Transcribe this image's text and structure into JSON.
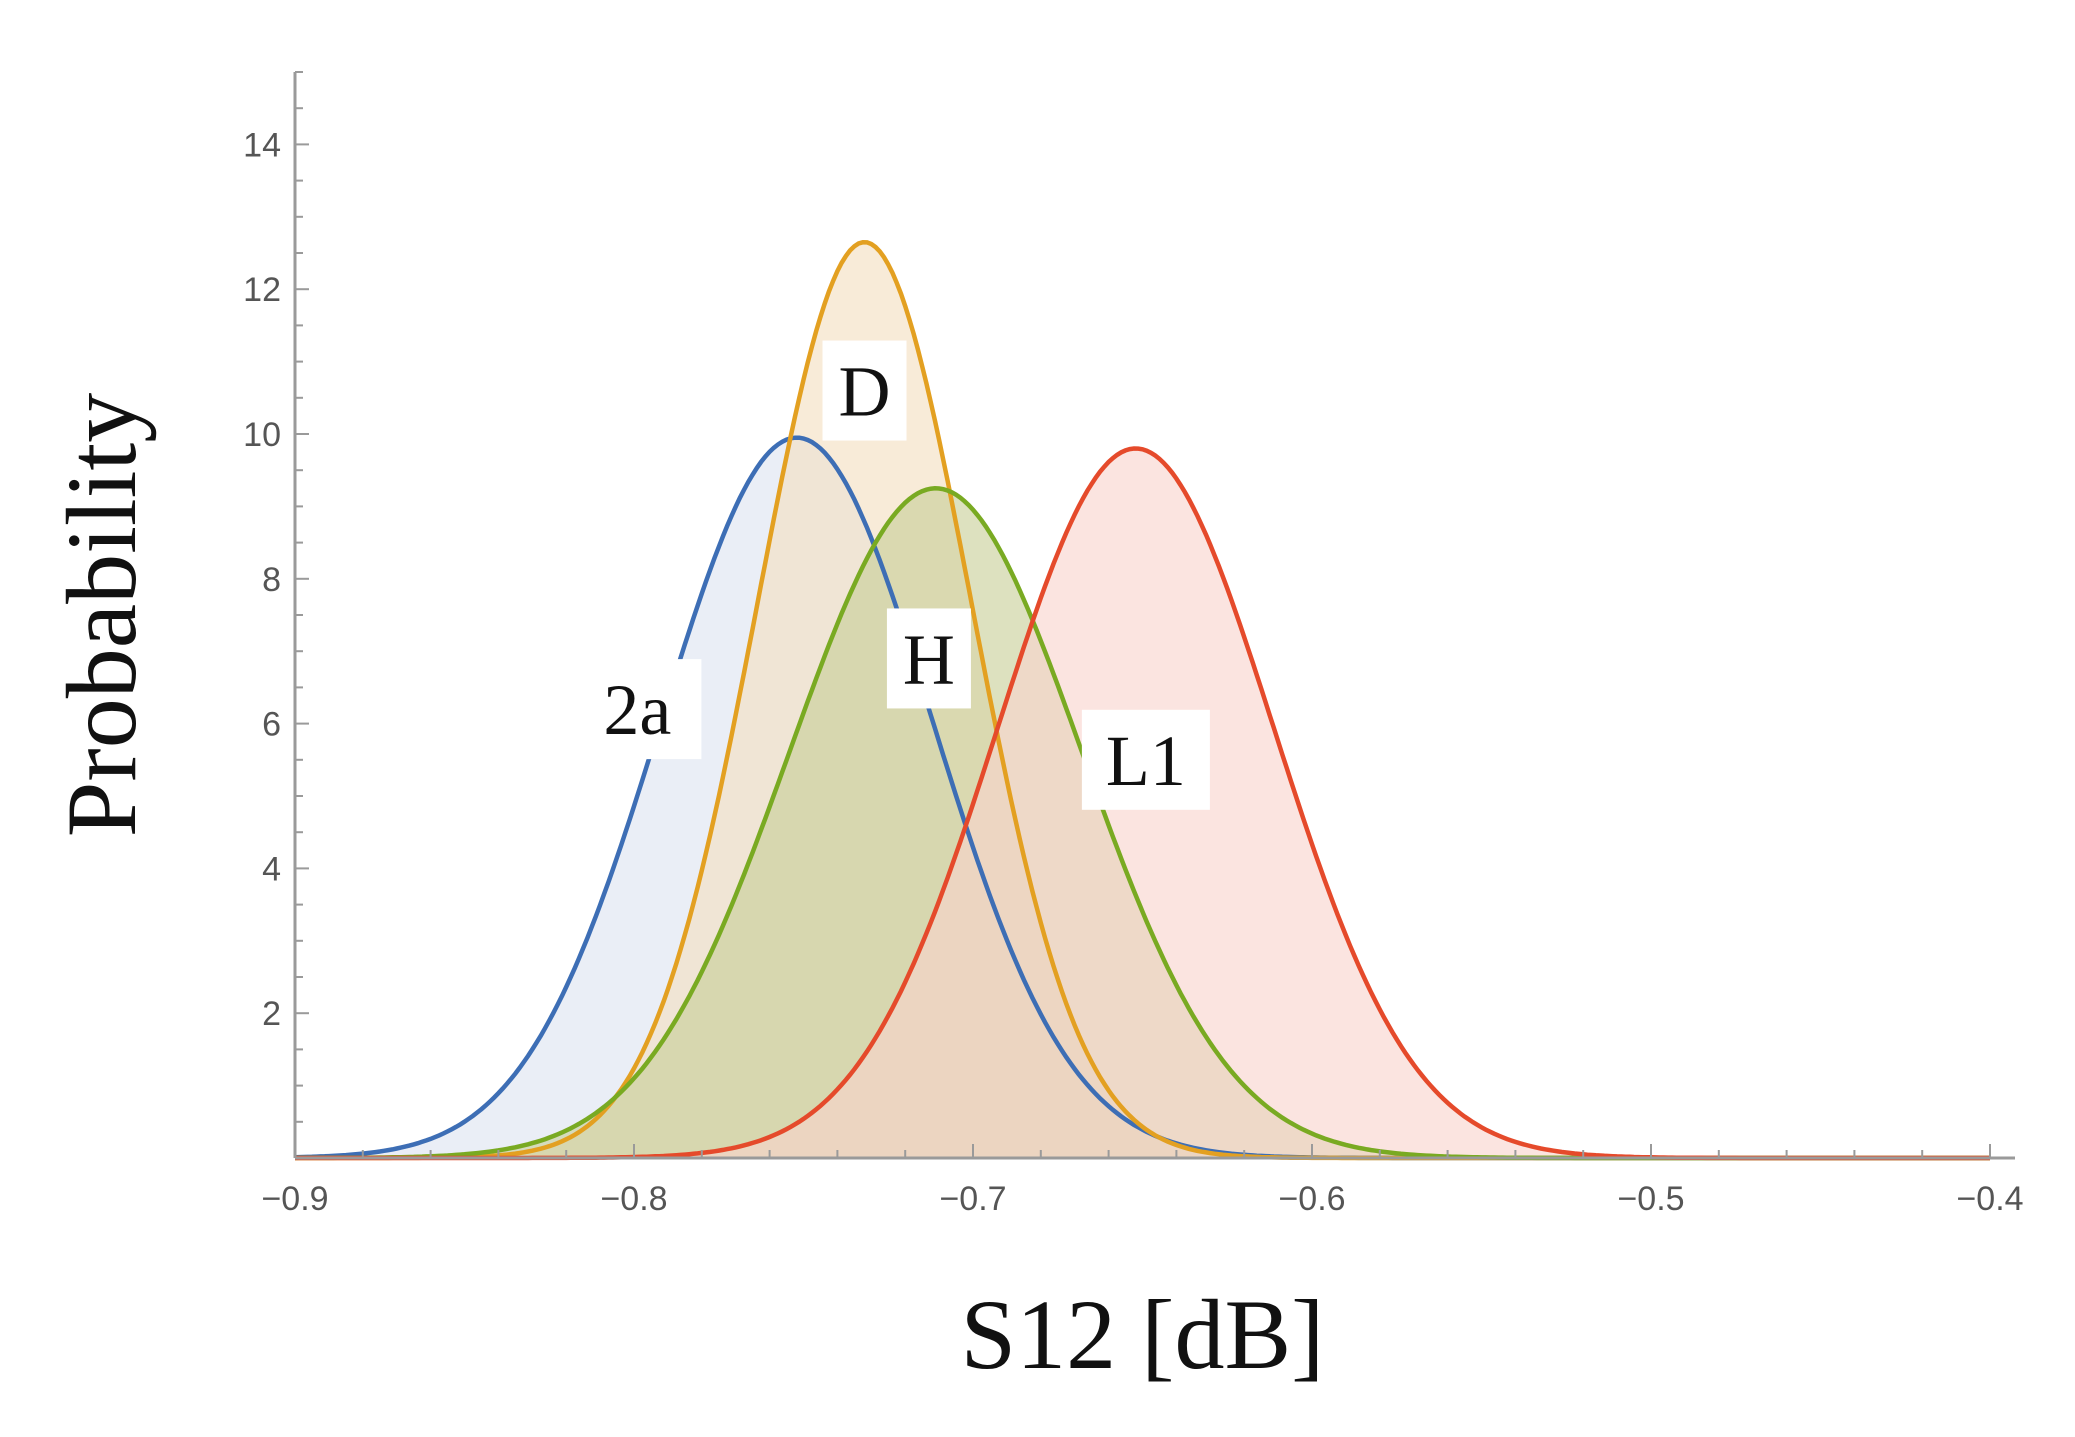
{
  "chart_data": {
    "type": "area",
    "title": "",
    "xlabel": "S12 [dB]",
    "ylabel": "Probability",
    "xlim": [
      -0.9,
      -0.4
    ],
    "ylim": [
      0,
      15
    ],
    "x_ticks": [
      -0.9,
      -0.8,
      -0.7,
      -0.6,
      -0.5,
      -0.4
    ],
    "x_tick_labels": [
      "−0.9",
      "−0.8",
      "−0.7",
      "−0.6",
      "−0.5",
      "−0.4"
    ],
    "y_ticks": [
      2,
      4,
      6,
      8,
      10,
      12,
      14
    ],
    "y_tick_labels": [
      "2",
      "4",
      "6",
      "8",
      "10",
      "12",
      "14"
    ],
    "grid": false,
    "legend": "none",
    "series": [
      {
        "name": "2a",
        "distribution": "normal",
        "mean": -0.752,
        "peak": 9.95,
        "color": "#3d6eb5",
        "fill": "#dde4f0"
      },
      {
        "name": "D",
        "distribution": "normal",
        "mean": -0.732,
        "peak": 12.65,
        "color": "#e3a021",
        "fill": "#f3dfc0"
      },
      {
        "name": "H",
        "distribution": "normal",
        "mean": -0.711,
        "peak": 9.25,
        "color": "#79aa22",
        "fill": "#c8cf98"
      },
      {
        "name": "L1",
        "distribution": "normal",
        "mean": -0.652,
        "peak": 9.8,
        "color": "#e54a2b",
        "fill": "#f8d4cd"
      }
    ],
    "annotations": [
      {
        "text": "2a",
        "series": "2a",
        "x": -0.799,
        "y": 6.2
      },
      {
        "text": "D",
        "series": "D",
        "x": -0.732,
        "y": 10.6
      },
      {
        "text": "H",
        "series": "H",
        "x": -0.713,
        "y": 6.9
      },
      {
        "text": "L1",
        "series": "L1",
        "x": -0.649,
        "y": 5.5
      }
    ]
  }
}
